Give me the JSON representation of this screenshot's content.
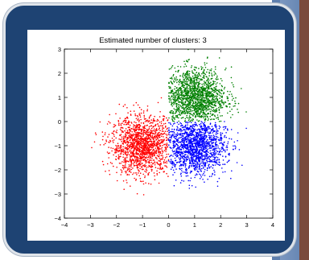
{
  "chart_data": {
    "type": "scatter",
    "title": "Estimated number of clusters: 3",
    "xlabel": "",
    "ylabel": "",
    "xlim": [
      -4,
      4
    ],
    "ylim": [
      -4,
      3
    ],
    "xticks": [
      -4,
      -3,
      -2,
      -1,
      0,
      1,
      2,
      3,
      4
    ],
    "yticks": [
      -4,
      -3,
      -2,
      -1,
      0,
      1,
      2,
      3
    ],
    "grid": false,
    "series": [
      {
        "color": "#ff0000",
        "center": [
          -1.0,
          -1.0
        ],
        "spread": 0.6,
        "count": 1500,
        "region": "x<0"
      },
      {
        "color": "#0000ff",
        "center": [
          1.0,
          -1.0
        ],
        "spread": 0.6,
        "count": 1500,
        "region": "x>=0,y<0"
      },
      {
        "color": "#008000",
        "center": [
          1.0,
          1.0
        ],
        "spread": 0.6,
        "count": 1500,
        "region": "x>=0,y>=0"
      }
    ]
  }
}
